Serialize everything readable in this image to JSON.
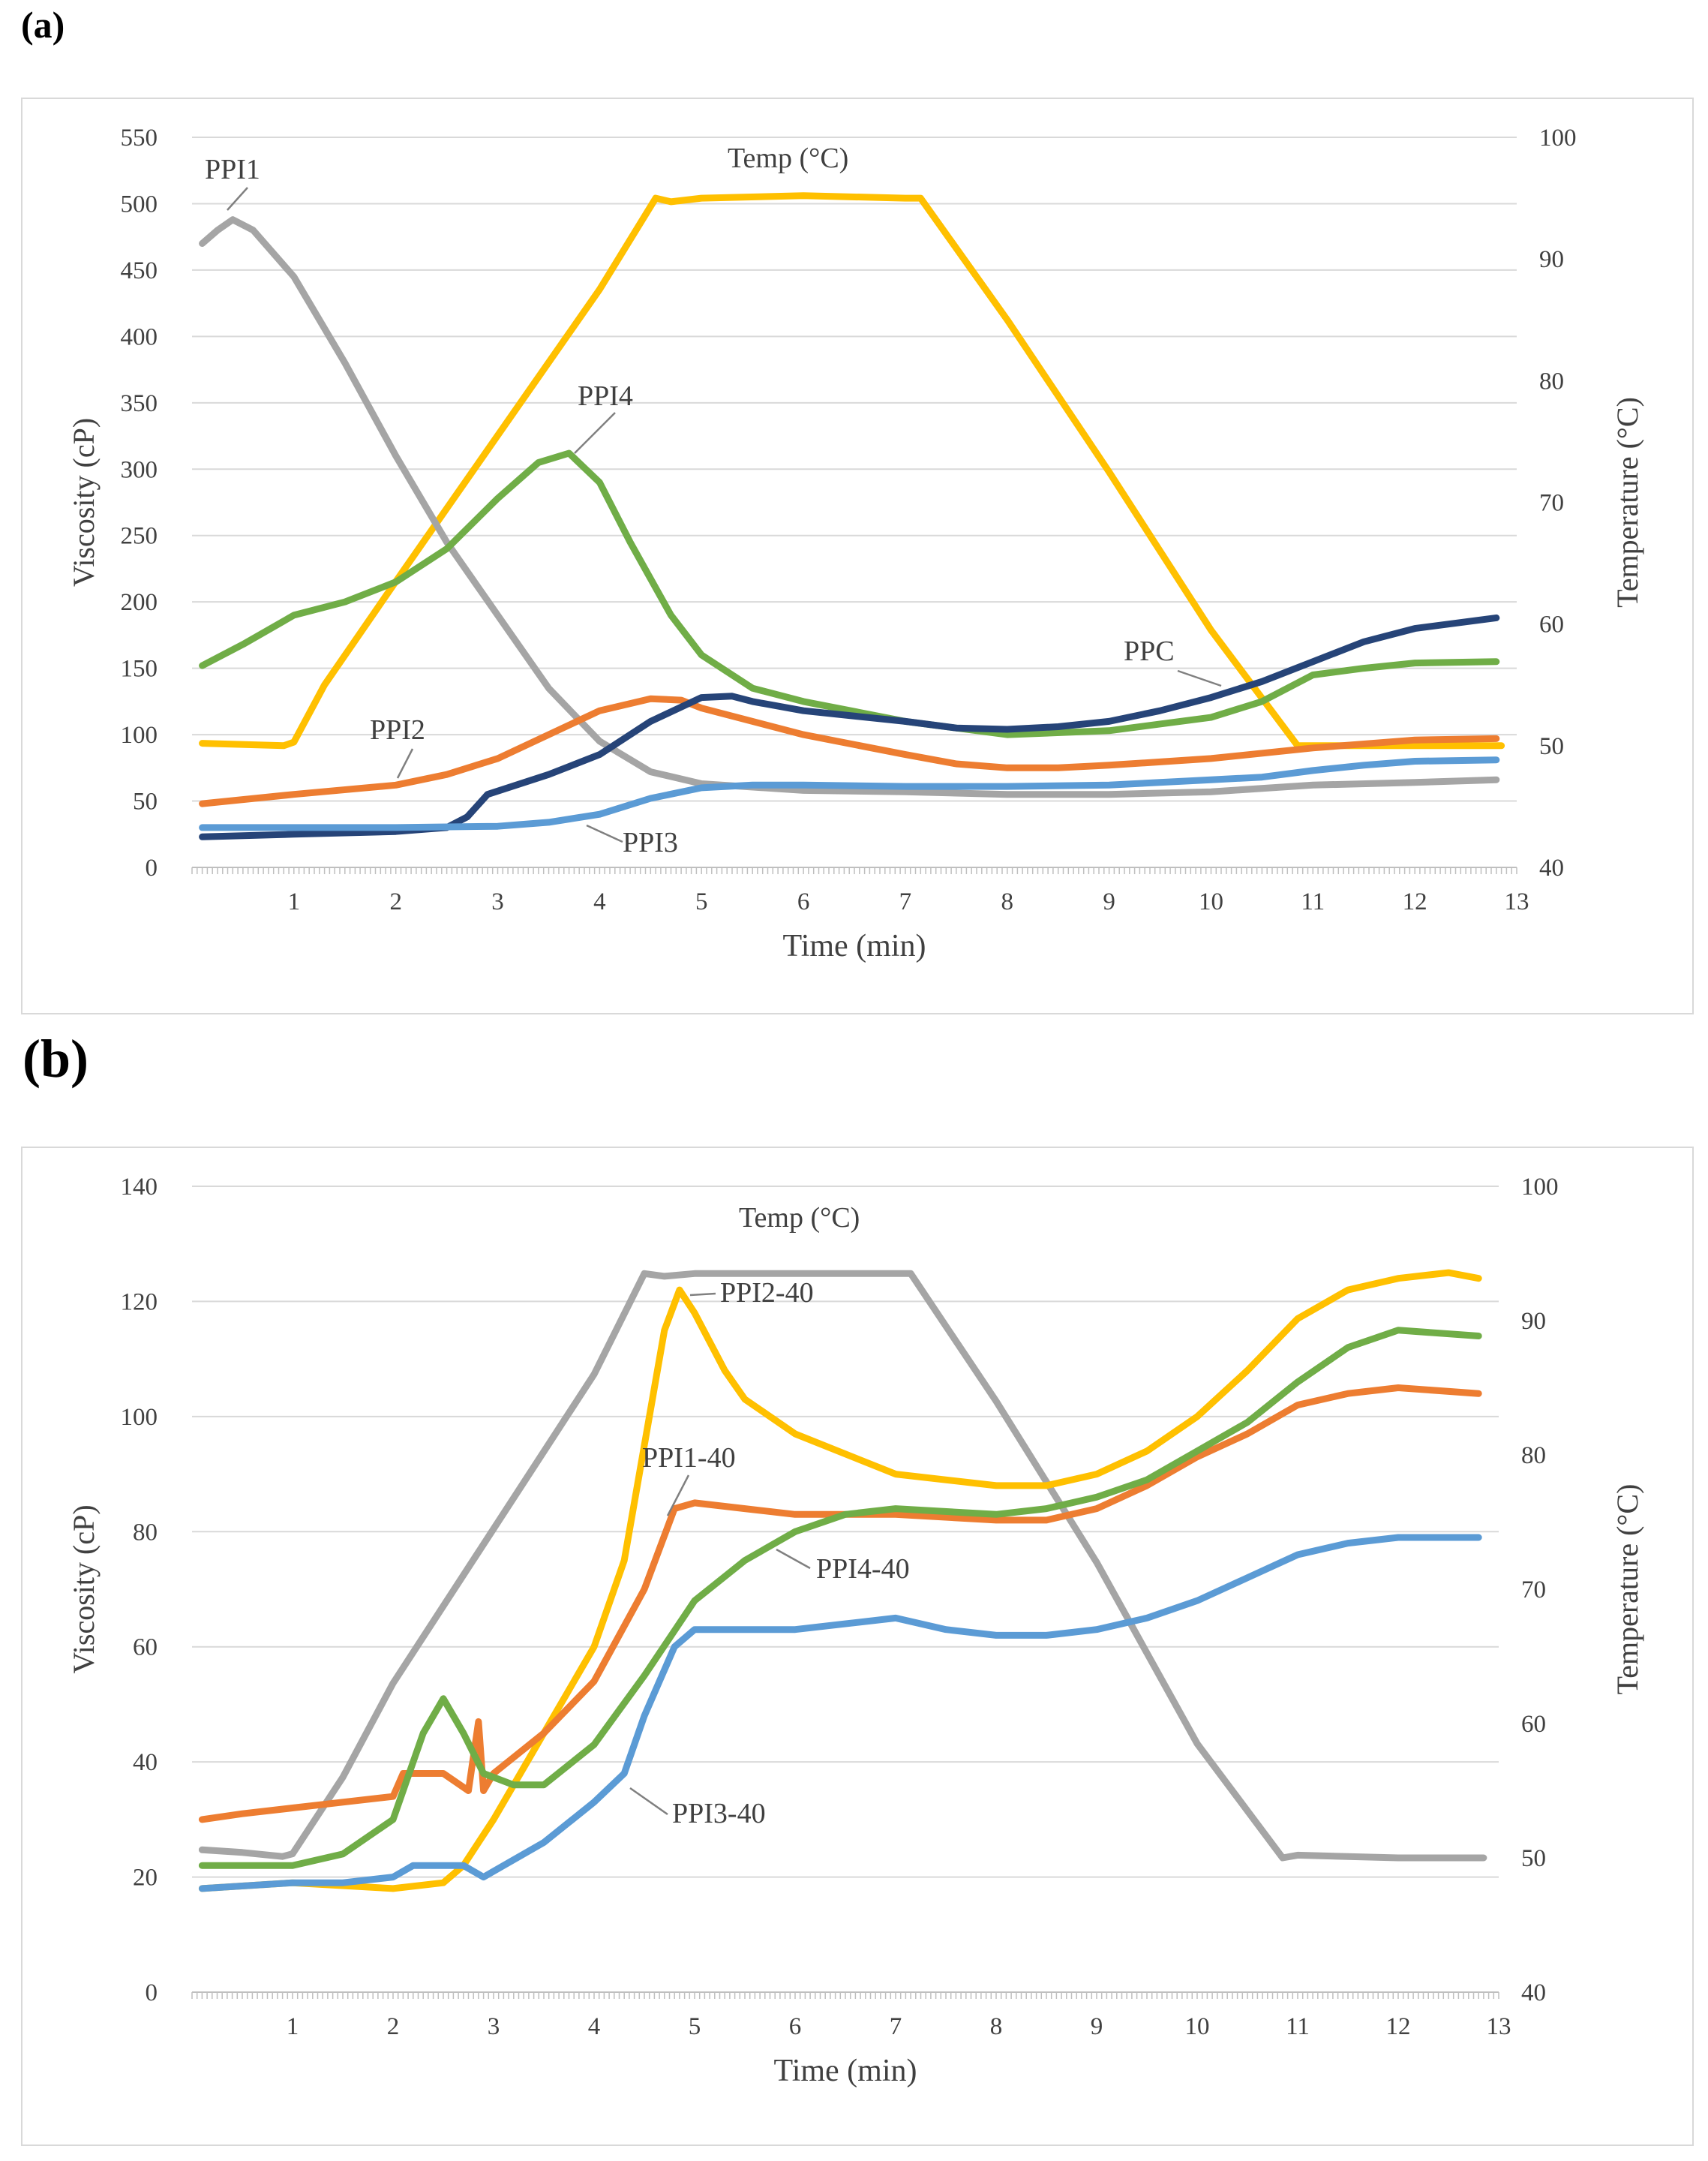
{
  "panels": {
    "a": {
      "label": "(a)"
    },
    "b": {
      "label": "(b)"
    }
  },
  "chart_data": [
    {
      "type": "line",
      "id": "a",
      "xlabel": "Time (min)",
      "ylabel": "Viscosity (cP)",
      "y2label": "Temperature (°C)",
      "xlim": [
        0,
        13
      ],
      "ylim": [
        0,
        550
      ],
      "y2lim": [
        40,
        100
      ],
      "xticks": [
        1,
        2,
        3,
        4,
        5,
        6,
        7,
        8,
        9,
        10,
        11,
        12,
        13
      ],
      "yticks": [
        0,
        50,
        100,
        150,
        200,
        250,
        300,
        350,
        400,
        450,
        500,
        550
      ],
      "y2ticks": [
        40,
        50,
        60,
        70,
        80,
        90,
        100
      ],
      "grid": true,
      "series": [
        {
          "name": "Temp (°C)",
          "axis": "y2",
          "color": "#FFC000",
          "x": [
            0.1,
            0.9,
            1.0,
            1.3,
            2.0,
            3.0,
            4.0,
            4.55,
            4.7,
            5.0,
            6.0,
            7.0,
            7.15,
            8.0,
            9.0,
            10.0,
            10.85,
            11.0,
            12.0,
            12.85
          ],
          "y": [
            50.2,
            50.0,
            50.3,
            55,
            63.5,
            75.5,
            87.5,
            95.0,
            94.7,
            95.0,
            95.2,
            95.0,
            95.0,
            85,
            72.5,
            59.5,
            50.0,
            50.0,
            50.0,
            50.0
          ]
        },
        {
          "name": "PPI1",
          "axis": "y",
          "color": "#A5A5A5",
          "x": [
            0.1,
            0.25,
            0.4,
            0.6,
            1.0,
            1.5,
            2.0,
            2.5,
            3.0,
            3.5,
            4.0,
            4.5,
            5.0,
            6.0,
            7.0,
            8.0,
            9.0,
            10.0,
            11.0,
            12.0,
            12.8
          ],
          "y": [
            470,
            480,
            488,
            480,
            445,
            380,
            310,
            245,
            190,
            135,
            95,
            72,
            63,
            58,
            57,
            55,
            55,
            57,
            62,
            64,
            66
          ]
        },
        {
          "name": "PPI4",
          "axis": "y",
          "color": "#70AD47",
          "x": [
            0.1,
            0.5,
            1.0,
            1.5,
            2.0,
            2.5,
            3.0,
            3.4,
            3.7,
            4.0,
            4.3,
            4.7,
            5.0,
            5.5,
            6.0,
            7.0,
            8.0,
            9.0,
            10.0,
            10.5,
            11.0,
            11.5,
            12.0,
            12.8
          ],
          "y": [
            152,
            168,
            190,
            200,
            215,
            240,
            278,
            305,
            312,
            290,
            245,
            190,
            160,
            135,
            125,
            110,
            100,
            103,
            113,
            125,
            145,
            150,
            154,
            155
          ]
        },
        {
          "name": "PPI2",
          "axis": "y",
          "color": "#ED7D31",
          "x": [
            0.1,
            1.0,
            2.0,
            2.5,
            3.0,
            3.5,
            4.0,
            4.5,
            4.8,
            5.0,
            6.0,
            7.0,
            7.5,
            8.0,
            8.5,
            9.0,
            10.0,
            11.0,
            12.0,
            12.8
          ],
          "y": [
            48,
            55,
            62,
            70,
            82,
            100,
            118,
            127,
            126,
            120,
            100,
            85,
            78,
            75,
            75,
            77,
            82,
            90,
            96,
            97
          ]
        },
        {
          "name": "PPC",
          "axis": "y",
          "color": "#264478",
          "x": [
            0.1,
            1.0,
            2.0,
            2.5,
            2.7,
            2.9,
            3.5,
            4.0,
            4.5,
            5.0,
            5.3,
            5.5,
            6.0,
            7.0,
            7.5,
            8.0,
            8.5,
            9.0,
            9.5,
            10.0,
            10.5,
            11.0,
            11.5,
            12.0,
            12.8
          ],
          "y": [
            23,
            25,
            27,
            30,
            38,
            55,
            70,
            85,
            110,
            128,
            129,
            125,
            118,
            110,
            105,
            104,
            106,
            110,
            118,
            128,
            140,
            155,
            170,
            180,
            188
          ]
        },
        {
          "name": "PPI3",
          "axis": "y",
          "color": "#5B9BD5",
          "x": [
            0.1,
            1.0,
            2.0,
            3.0,
            3.5,
            4.0,
            4.5,
            5.0,
            5.5,
            6.0,
            7.0,
            8.0,
            9.0,
            10.0,
            10.5,
            11.0,
            11.5,
            12.0,
            12.8
          ],
          "y": [
            30,
            30,
            30,
            31,
            34,
            40,
            52,
            60,
            62,
            62,
            61,
            61,
            62,
            66,
            68,
            73,
            77,
            80,
            81
          ]
        }
      ],
      "annotations": [
        "PPI1",
        "Temp (°C)",
        "PPI4",
        "PPI2",
        "PPC",
        "PPI3"
      ]
    },
    {
      "type": "line",
      "id": "b",
      "xlabel": "Time (min)",
      "ylabel": "Viscosity (cP)",
      "y2label": "Temperature (°C)",
      "xlim": [
        0,
        13
      ],
      "ylim": [
        0,
        140
      ],
      "y2lim": [
        40,
        100
      ],
      "xticks": [
        1,
        2,
        3,
        4,
        5,
        6,
        7,
        8,
        9,
        10,
        11,
        12,
        13
      ],
      "yticks": [
        0,
        20,
        40,
        60,
        80,
        100,
        120,
        140
      ],
      "y2ticks": [
        40,
        50,
        60,
        70,
        80,
        90,
        100
      ],
      "grid": true,
      "series": [
        {
          "name": "Temp (°C)",
          "axis": "y2",
          "color": "#A5A5A5",
          "x": [
            0.1,
            0.5,
            0.9,
            1.0,
            1.5,
            2.0,
            3.0,
            4.0,
            4.5,
            4.7,
            5.0,
            6.0,
            7.0,
            7.15,
            8.0,
            9.0,
            10.0,
            10.85,
            11.0,
            12.0,
            12.85
          ],
          "y": [
            50.6,
            50.4,
            50.1,
            50.3,
            56,
            63,
            74.5,
            86,
            93.5,
            93.3,
            93.5,
            93.5,
            93.5,
            93.5,
            84,
            72,
            58.5,
            50.0,
            50.2,
            50.0,
            50.0
          ]
        },
        {
          "name": "PPI2-40",
          "axis": "y",
          "color": "#FFC000",
          "x": [
            0.1,
            1.0,
            2.0,
            2.5,
            2.7,
            3.0,
            3.5,
            4.0,
            4.3,
            4.5,
            4.7,
            4.85,
            5.0,
            5.3,
            5.5,
            6.0,
            7.0,
            8.0,
            8.5,
            9.0,
            9.5,
            10.0,
            10.5,
            11.0,
            11.5,
            12.0,
            12.5,
            12.8
          ],
          "y": [
            18,
            19,
            18,
            19,
            22,
            30,
            45,
            60,
            75,
            95,
            115,
            122,
            118,
            108,
            103,
            97,
            90,
            88,
            88,
            90,
            94,
            100,
            108,
            117,
            122,
            124,
            125,
            124
          ]
        },
        {
          "name": "PPI1-40",
          "axis": "y",
          "color": "#ED7D31",
          "x": [
            0.1,
            0.5,
            1.0,
            1.5,
            2.0,
            2.1,
            2.5,
            2.75,
            2.85,
            2.9,
            3.0,
            3.5,
            4.0,
            4.5,
            4.8,
            5.0,
            5.5,
            6.0,
            7.0,
            8.0,
            8.5,
            9.0,
            9.5,
            10.0,
            10.5,
            11.0,
            11.5,
            12.0,
            12.8
          ],
          "y": [
            30,
            31,
            32,
            33,
            34,
            38,
            38,
            35,
            47,
            35,
            38,
            45,
            54,
            70,
            84,
            85,
            84,
            83,
            83,
            82,
            82,
            84,
            88,
            93,
            97,
            102,
            104,
            105,
            104
          ]
        },
        {
          "name": "PPI4-40",
          "axis": "y",
          "color": "#70AD47",
          "x": [
            0.1,
            1.0,
            1.5,
            2.0,
            2.3,
            2.5,
            2.7,
            2.9,
            3.2,
            3.5,
            4.0,
            4.5,
            5.0,
            5.5,
            6.0,
            6.5,
            7.0,
            8.0,
            8.5,
            9.0,
            9.5,
            10.0,
            10.5,
            11.0,
            11.5,
            12.0,
            12.8
          ],
          "y": [
            22,
            22,
            24,
            30,
            45,
            51,
            45,
            38,
            36,
            36,
            43,
            55,
            68,
            75,
            80,
            83,
            84,
            83,
            84,
            86,
            89,
            94,
            99,
            106,
            112,
            115,
            114
          ]
        },
        {
          "name": "PPI3-40",
          "axis": "y",
          "color": "#5B9BD5",
          "x": [
            0.1,
            1.0,
            1.5,
            2.0,
            2.2,
            2.5,
            2.7,
            2.9,
            3.0,
            3.5,
            4.0,
            4.3,
            4.5,
            4.8,
            5.0,
            5.5,
            6.0,
            7.0,
            7.5,
            8.0,
            8.5,
            9.0,
            9.5,
            10.0,
            10.5,
            11.0,
            11.5,
            12.0,
            12.8
          ],
          "y": [
            18,
            19,
            19,
            20,
            22,
            22,
            22,
            20,
            21,
            26,
            33,
            38,
            48,
            60,
            63,
            63,
            63,
            65,
            63,
            62,
            62,
            63,
            65,
            68,
            72,
            76,
            78,
            79,
            79
          ]
        }
      ],
      "annotations": [
        "Temp (°C)",
        "PPI2-40",
        "PPI1-40",
        "PPI4-40",
        "PPI3-40"
      ]
    }
  ]
}
